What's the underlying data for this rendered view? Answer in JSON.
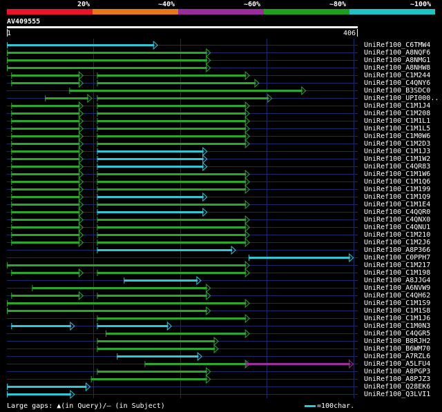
{
  "colors": {
    "bins": [
      "#e8142a",
      "#e8771a",
      "#9b2d9b",
      "#1ea01e",
      "#1ec3c8"
    ],
    "cyan": "#2ec8d6",
    "green": "#2aa82a",
    "purple": "#a02da0",
    "grid": "#1c2a6a",
    "ruler": "#ffffff"
  },
  "legend": {
    "labels": [
      "20%",
      "~40%",
      "~60%",
      "~80%",
      "~100%"
    ]
  },
  "query": {
    "name": "AV409555",
    "start": "1",
    "end": "406",
    "length": 406
  },
  "footer": {
    "gaps_text": "Large gaps: ▲(in Query)/– (in Subject)",
    "scale_text": "=100char."
  },
  "hits": [
    {
      "name": "UniRef100_C6TMW4",
      "segments": [
        {
          "start": 1,
          "end": 171,
          "color": "cyan"
        }
      ]
    },
    {
      "name": "UniRef100_A8NQF6",
      "segments": [
        {
          "start": 1,
          "end": 232,
          "color": "green"
        }
      ]
    },
    {
      "name": "UniRef100_A8NMG1",
      "segments": [
        {
          "start": 1,
          "end": 232,
          "color": "green"
        }
      ]
    },
    {
      "name": "UniRef100_A8NHW8",
      "segments": [
        {
          "start": 1,
          "end": 232,
          "color": "green"
        }
      ]
    },
    {
      "name": "UniRef100_C1M244",
      "segments": [
        {
          "start": 6,
          "end": 85,
          "color": "green"
        },
        {
          "start": 105,
          "end": 277,
          "color": "green"
        }
      ]
    },
    {
      "name": "UniRef100_C4QNY6",
      "segments": [
        {
          "start": 6,
          "end": 85,
          "color": "green"
        },
        {
          "start": 105,
          "end": 288,
          "color": "green"
        }
      ]
    },
    {
      "name": "UniRef100_B3SDC0",
      "segments": [
        {
          "start": 73,
          "end": 342,
          "color": "green"
        }
      ]
    },
    {
      "name": "UniRef100_UPI000..",
      "segments": [
        {
          "start": 45,
          "end": 95,
          "color": "green"
        },
        {
          "start": 105,
          "end": 303,
          "color": "green"
        }
      ]
    },
    {
      "name": "UniRef100_C1M1J4",
      "segments": [
        {
          "start": 6,
          "end": 85,
          "color": "green"
        },
        {
          "start": 105,
          "end": 277,
          "color": "green"
        }
      ]
    },
    {
      "name": "UniRef100_C1M208",
      "segments": [
        {
          "start": 6,
          "end": 85,
          "color": "green"
        },
        {
          "start": 105,
          "end": 277,
          "color": "green"
        }
      ]
    },
    {
      "name": "UniRef100_C1M1L1",
      "segments": [
        {
          "start": 6,
          "end": 85,
          "color": "green"
        },
        {
          "start": 105,
          "end": 277,
          "color": "green"
        }
      ]
    },
    {
      "name": "UniRef100_C1M1L5",
      "segments": [
        {
          "start": 6,
          "end": 85,
          "color": "green"
        },
        {
          "start": 105,
          "end": 277,
          "color": "green"
        }
      ]
    },
    {
      "name": "UniRef100_C1M0W6",
      "segments": [
        {
          "start": 6,
          "end": 85,
          "color": "green"
        },
        {
          "start": 105,
          "end": 277,
          "color": "green"
        }
      ]
    },
    {
      "name": "UniRef100_C1M2D3",
      "segments": [
        {
          "start": 6,
          "end": 85,
          "color": "green"
        },
        {
          "start": 105,
          "end": 277,
          "color": "green"
        }
      ]
    },
    {
      "name": "UniRef100_C1M1J3",
      "segments": [
        {
          "start": 6,
          "end": 85,
          "color": "green"
        },
        {
          "start": 105,
          "end": 228,
          "color": "cyan"
        }
      ]
    },
    {
      "name": "UniRef100_C1M1W2",
      "segments": [
        {
          "start": 6,
          "end": 85,
          "color": "green"
        },
        {
          "start": 105,
          "end": 228,
          "color": "cyan"
        }
      ]
    },
    {
      "name": "UniRef100_C4QR83",
      "segments": [
        {
          "start": 6,
          "end": 85,
          "color": "green"
        },
        {
          "start": 105,
          "end": 228,
          "color": "cyan"
        }
      ]
    },
    {
      "name": "UniRef100_C1M1W6",
      "segments": [
        {
          "start": 6,
          "end": 85,
          "color": "green"
        },
        {
          "start": 105,
          "end": 277,
          "color": "green"
        }
      ]
    },
    {
      "name": "UniRef100_C1M1Q6",
      "segments": [
        {
          "start": 6,
          "end": 85,
          "color": "green"
        },
        {
          "start": 105,
          "end": 277,
          "color": "green"
        }
      ]
    },
    {
      "name": "UniRef100_C1M199",
      "segments": [
        {
          "start": 6,
          "end": 85,
          "color": "green"
        },
        {
          "start": 105,
          "end": 277,
          "color": "green"
        }
      ]
    },
    {
      "name": "UniRef100_C1M1Q9",
      "segments": [
        {
          "start": 6,
          "end": 85,
          "color": "green"
        },
        {
          "start": 105,
          "end": 228,
          "color": "cyan"
        }
      ]
    },
    {
      "name": "UniRef100_C1M1E4",
      "segments": [
        {
          "start": 6,
          "end": 85,
          "color": "green"
        },
        {
          "start": 105,
          "end": 277,
          "color": "green"
        }
      ]
    },
    {
      "name": "UniRef100_C4QQR0",
      "segments": [
        {
          "start": 6,
          "end": 85,
          "color": "green"
        },
        {
          "start": 105,
          "end": 228,
          "color": "cyan"
        }
      ]
    },
    {
      "name": "UniRef100_C4QNX0",
      "segments": [
        {
          "start": 6,
          "end": 85,
          "color": "green"
        },
        {
          "start": 105,
          "end": 277,
          "color": "green"
        }
      ]
    },
    {
      "name": "UniRef100_C4QNU1",
      "segments": [
        {
          "start": 6,
          "end": 85,
          "color": "green"
        },
        {
          "start": 105,
          "end": 277,
          "color": "green"
        }
      ]
    },
    {
      "name": "UniRef100_C1M210",
      "segments": [
        {
          "start": 6,
          "end": 85,
          "color": "green"
        },
        {
          "start": 105,
          "end": 277,
          "color": "green"
        }
      ]
    },
    {
      "name": "UniRef100_C1M2J6",
      "segments": [
        {
          "start": 6,
          "end": 85,
          "color": "green"
        },
        {
          "start": 105,
          "end": 277,
          "color": "green"
        }
      ]
    },
    {
      "name": "UniRef100_A8P366",
      "segments": [
        {
          "start": 105,
          "end": 261,
          "color": "cyan"
        }
      ]
    },
    {
      "name": "UniRef100_C0PPH7",
      "segments": [
        {
          "start": 280,
          "end": 397,
          "color": "cyan"
        }
      ]
    },
    {
      "name": "UniRef100_C1M217",
      "segments": [
        {
          "start": 1,
          "end": 277,
          "color": "green"
        }
      ]
    },
    {
      "name": "UniRef100_C1M198",
      "segments": [
        {
          "start": 6,
          "end": 85,
          "color": "green"
        },
        {
          "start": 105,
          "end": 277,
          "color": "green"
        }
      ]
    },
    {
      "name": "UniRef100_A8JJG4",
      "segments": [
        {
          "start": 136,
          "end": 221,
          "color": "cyan"
        }
      ]
    },
    {
      "name": "UniRef100_A6NVW9",
      "segments": [
        {
          "start": 30,
          "end": 232,
          "color": "green"
        }
      ]
    },
    {
      "name": "UniRef100_C4QH62",
      "segments": [
        {
          "start": 6,
          "end": 85,
          "color": "green"
        },
        {
          "start": 105,
          "end": 232,
          "color": "green"
        }
      ]
    },
    {
      "name": "UniRef100_C1M1S9",
      "segments": [
        {
          "start": 1,
          "end": 277,
          "color": "green"
        }
      ]
    },
    {
      "name": "UniRef100_C1M1S8",
      "segments": [
        {
          "start": 1,
          "end": 232,
          "color": "green"
        }
      ]
    },
    {
      "name": "UniRef100_C1M1J6",
      "segments": [
        {
          "start": 105,
          "end": 277,
          "color": "green"
        }
      ]
    },
    {
      "name": "UniRef100_C1M0N3",
      "segments": [
        {
          "start": 6,
          "end": 75,
          "color": "cyan"
        },
        {
          "start": 105,
          "end": 187,
          "color": "cyan"
        }
      ]
    },
    {
      "name": "UniRef100_C4QGR5",
      "segments": [
        {
          "start": 115,
          "end": 277,
          "color": "green"
        }
      ]
    },
    {
      "name": "UniRef100_B8RJH2",
      "segments": [
        {
          "start": 105,
          "end": 241,
          "color": "green"
        }
      ]
    },
    {
      "name": "UniRef100_B6WM70",
      "segments": [
        {
          "start": 105,
          "end": 241,
          "color": "green"
        }
      ]
    },
    {
      "name": "UniRef100_A7RZL6",
      "segments": [
        {
          "start": 128,
          "end": 222,
          "color": "cyan"
        }
      ]
    },
    {
      "name": "UniRef100_A5LFU4",
      "segments": [
        {
          "start": 160,
          "end": 277,
          "color": "green"
        },
        {
          "start": 277,
          "end": 397,
          "color": "purple"
        }
      ]
    },
    {
      "name": "UniRef100_A8PGP3",
      "segments": [
        {
          "start": 105,
          "end": 232,
          "color": "green"
        }
      ]
    },
    {
      "name": "UniRef100_A8PJZ3",
      "segments": [
        {
          "start": 98,
          "end": 232,
          "color": "green"
        }
      ]
    },
    {
      "name": "UniRef100_Q28EK6",
      "segments": [
        {
          "start": 1,
          "end": 93,
          "color": "cyan"
        }
      ]
    },
    {
      "name": "UniRef100_Q3LVI1",
      "segments": [
        {
          "start": 1,
          "end": 75,
          "color": "cyan"
        }
      ]
    }
  ]
}
